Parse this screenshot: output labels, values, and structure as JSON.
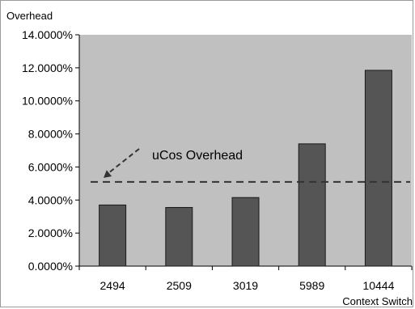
{
  "chart_data": {
    "type": "bar",
    "title": "",
    "ylabel": "Overhead",
    "xlabel": "Context Switch",
    "categories": [
      "2494",
      "2509",
      "3019",
      "5989",
      "10444"
    ],
    "values": [
      3.7,
      3.55,
      4.15,
      7.4,
      11.85
    ],
    "ylim": [
      0,
      14
    ],
    "yticks": [
      0,
      2,
      4,
      6,
      8,
      10,
      12,
      14
    ],
    "ytick_labels": [
      "0.0000%",
      "2.0000%",
      "4.0000%",
      "6.0000%",
      "8.0000%",
      "10.0000%",
      "12.0000%",
      "14.0000%"
    ],
    "reference_line": {
      "label": "uCos Overhead",
      "value": 5.1,
      "style": "dashed"
    },
    "grid": false,
    "legend": "none",
    "colors": {
      "plot_background": "#c0c0c0",
      "bar_fill": "#555555",
      "bar_stroke": "#1a1a1a",
      "reference_line": "#333333"
    }
  }
}
